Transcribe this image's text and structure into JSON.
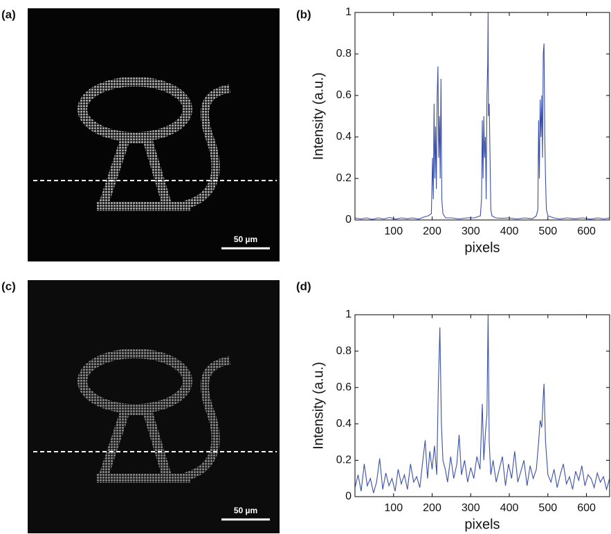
{
  "panels": [
    {
      "label": "(a)",
      "scale_bar": "50 µm"
    },
    {
      "label": "(c)",
      "scale_bar": "50 µm"
    }
  ],
  "chart_data": [
    {
      "type": "line",
      "panel_label": "(b)",
      "x_label": "pixels",
      "y_label": "Intensity (a.u.)",
      "color": "#3a4fa8",
      "x": [
        0,
        15,
        30,
        45,
        60,
        75,
        90,
        105,
        120,
        135,
        150,
        165,
        180,
        190,
        198,
        201,
        203,
        205,
        207,
        209,
        211,
        213,
        215,
        217,
        219,
        221,
        223,
        225,
        228,
        235,
        250,
        270,
        290,
        310,
        325,
        328,
        330,
        332,
        334,
        336,
        338,
        340,
        342,
        344,
        345,
        346,
        348,
        350,
        352,
        355,
        365,
        380,
        400,
        420,
        440,
        460,
        470,
        474,
        476,
        478,
        480,
        482,
        484,
        486,
        488,
        490,
        492,
        494,
        496,
        500,
        515,
        530,
        550,
        570,
        590,
        610,
        630,
        645,
        660
      ],
      "values": [
        0.01,
        0.005,
        0.01,
        0.003,
        0.01,
        0.005,
        0.012,
        0.004,
        0.01,
        0.006,
        0.01,
        0.004,
        0.015,
        0.02,
        0.03,
        0.3,
        0.1,
        0.56,
        0.2,
        0.45,
        0.15,
        0.6,
        0.74,
        0.3,
        0.5,
        0.2,
        0.68,
        0.1,
        0.03,
        0.01,
        0.01,
        0.005,
        0.01,
        0.01,
        0.02,
        0.1,
        0.48,
        0.2,
        0.5,
        0.3,
        0.4,
        0.1,
        0.6,
        0.75,
        1,
        0.5,
        0.56,
        0.3,
        0.05,
        0.02,
        0.01,
        0.008,
        0.01,
        0.005,
        0.01,
        0.006,
        0.02,
        0.05,
        0.48,
        0.2,
        0.58,
        0.4,
        0.6,
        0.3,
        0.8,
        0.85,
        0.4,
        0.2,
        0.05,
        0.02,
        0.01,
        0.005,
        0.01,
        0.006,
        0.01,
        0.004,
        0.01,
        0.005,
        0.01
      ],
      "xlim": [
        0,
        660
      ],
      "ylim": [
        0,
        1
      ],
      "xticks": [
        100,
        200,
        300,
        400,
        500,
        600
      ],
      "yticks": [
        0,
        0.2,
        0.4,
        0.6,
        0.8,
        1
      ]
    },
    {
      "type": "line",
      "panel_label": "(d)",
      "x_label": "pixels",
      "y_label": "Intensity (a.u.)",
      "color": "#3a4fa8",
      "x": [
        0,
        8,
        16,
        24,
        32,
        40,
        48,
        56,
        64,
        72,
        80,
        88,
        96,
        104,
        112,
        120,
        128,
        136,
        144,
        152,
        160,
        168,
        176,
        182,
        188,
        194,
        200,
        206,
        212,
        216,
        220,
        224,
        228,
        234,
        240,
        248,
        256,
        264,
        270,
        276,
        284,
        292,
        300,
        308,
        316,
        324,
        330,
        334,
        338,
        342,
        345,
        348,
        352,
        358,
        366,
        374,
        382,
        390,
        398,
        406,
        414,
        422,
        430,
        438,
        446,
        454,
        462,
        470,
        476,
        480,
        484,
        488,
        490,
        494,
        500,
        508,
        516,
        524,
        532,
        540,
        548,
        556,
        564,
        572,
        580,
        588,
        596,
        604,
        612,
        620,
        628,
        636,
        644,
        652,
        660
      ],
      "values": [
        0.05,
        0.12,
        0.03,
        0.18,
        0.06,
        0.1,
        0.02,
        0.08,
        0.21,
        0.04,
        0.13,
        0.06,
        0.1,
        0.03,
        0.15,
        0.07,
        0.12,
        0.04,
        0.18,
        0.08,
        0.11,
        0.05,
        0.2,
        0.31,
        0.1,
        0.25,
        0.15,
        0.28,
        0.12,
        0.6,
        0.93,
        0.4,
        0.2,
        0.15,
        0.08,
        0.22,
        0.1,
        0.18,
        0.34,
        0.12,
        0.2,
        0.08,
        0.16,
        0.1,
        0.22,
        0.15,
        0.51,
        0.2,
        0.35,
        0.45,
        1,
        0.3,
        0.12,
        0.2,
        0.08,
        0.15,
        0.22,
        0.06,
        0.18,
        0.1,
        0.25,
        0.08,
        0.14,
        0.2,
        0.06,
        0.17,
        0.1,
        0.15,
        0.3,
        0.42,
        0.38,
        0.55,
        0.62,
        0.3,
        0.12,
        0.08,
        0.15,
        0.05,
        0.12,
        0.18,
        0.07,
        0.11,
        0.04,
        0.14,
        0.09,
        0.17,
        0.06,
        0.12,
        0.1,
        0.05,
        0.13,
        0.08,
        0.11,
        0.04,
        0.1
      ],
      "xlim": [
        0,
        660
      ],
      "ylim": [
        0,
        1
      ],
      "xticks": [
        100,
        200,
        300,
        400,
        500,
        600
      ],
      "yticks": [
        0,
        0.2,
        0.4,
        0.6,
        0.8,
        1
      ]
    }
  ]
}
